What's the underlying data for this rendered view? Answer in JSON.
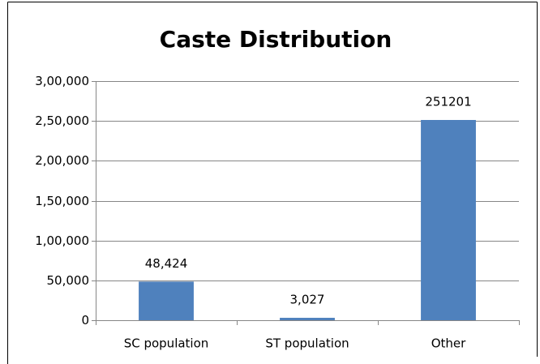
{
  "chart_data": {
    "type": "bar",
    "title": "Caste Distribution",
    "categories": [
      "SC population",
      "ST population",
      "Other"
    ],
    "values": [
      48424,
      3027,
      251201
    ],
    "value_labels": [
      "48,424",
      "3,027",
      "251201"
    ],
    "color": "#4f81bd",
    "ylim": [
      0,
      300000
    ],
    "yticks": [
      0,
      {
        "value": 50000,
        "label": "50,000"
      },
      {
        "value": 100000,
        "label": "1,00,000"
      },
      {
        "value": 150000,
        "label": "1,50,000"
      },
      {
        "value": 200000,
        "label": "2,00,000"
      },
      {
        "value": 250000,
        "label": "2,50,000"
      },
      {
        "value": 300000,
        "label": "3,00,000"
      }
    ],
    "grid": true
  }
}
